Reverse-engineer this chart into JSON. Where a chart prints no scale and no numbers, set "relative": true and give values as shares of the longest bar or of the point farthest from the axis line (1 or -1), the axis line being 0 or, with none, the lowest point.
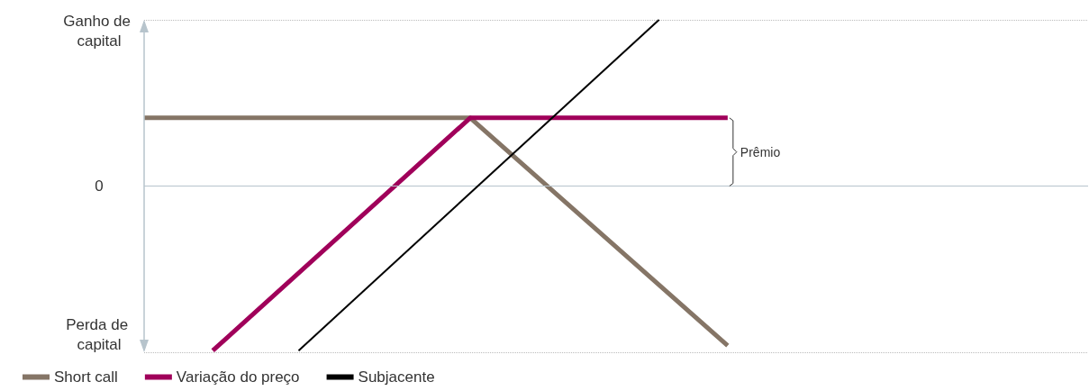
{
  "chart_data": {
    "type": "line",
    "relative": true,
    "categories": [
      null,
      null,
      null,
      null,
      null,
      null,
      null,
      null,
      null,
      null,
      null,
      null,
      null,
      null,
      null,
      null,
      null,
      null,
      null,
      null,
      null,
      null,
      null,
      null,
      null,
      null,
      null,
      null,
      null,
      null,
      null,
      null,
      null,
      null,
      null,
      null,
      null,
      null,
      null,
      null,
      null,
      null,
      null,
      null,
      null,
      null,
      null,
      null,
      null,
      null,
      null,
      null,
      null,
      null,
      null,
      null
    ],
    "series": [
      {
        "name": "Short call",
        "color": "#857566",
        "values": [
          0.41,
          null,
          null,
          null,
          null,
          null,
          null,
          null,
          null,
          null,
          null,
          null,
          null,
          null,
          null,
          null,
          null,
          null,
          null,
          0.41,
          null,
          null,
          null,
          null,
          null,
          null,
          null,
          null,
          null,
          null,
          null,
          null,
          null,
          null,
          -0.96,
          null,
          null,
          null,
          null,
          null,
          null,
          null,
          null,
          null,
          null,
          null,
          null,
          null,
          null,
          null,
          null,
          null,
          null,
          null,
          null,
          null
        ]
      },
      {
        "name": "Variação do preço",
        "color": "#a0005a",
        "values": [
          null,
          null,
          null,
          null,
          -0.99,
          null,
          null,
          null,
          null,
          null,
          null,
          null,
          null,
          null,
          null,
          null,
          null,
          null,
          null,
          0.41,
          null,
          null,
          null,
          null,
          null,
          null,
          null,
          null,
          null,
          null,
          null,
          null,
          null,
          null,
          0.41,
          null,
          null,
          null,
          null,
          null,
          null,
          null,
          null,
          null,
          null,
          null,
          null,
          null,
          null,
          null,
          null,
          null,
          null,
          null,
          null,
          null
        ]
      },
      {
        "name": "Subjacente",
        "color": "#000000",
        "values": [
          null,
          null,
          null,
          null,
          null,
          null,
          null,
          null,
          null,
          -0.99,
          null,
          null,
          null,
          null,
          null,
          null,
          null,
          null,
          null,
          null,
          null,
          null,
          null,
          null,
          null,
          null,
          null,
          null,
          null,
          null,
          1,
          null,
          null,
          null,
          null,
          null,
          null,
          null,
          null,
          null,
          null,
          null,
          null,
          null,
          null,
          null,
          null,
          null,
          null,
          null,
          null,
          null,
          null,
          null,
          null,
          null
        ]
      }
    ],
    "ref_lines": [
      {
        "axis": "y",
        "value": 1,
        "label": "Ganho de capital",
        "line_style": "dotted",
        "color": "#bbbbbb"
      },
      {
        "axis": "y",
        "value": 0,
        "label": "0",
        "line_style": "solid",
        "color": "#b7c4cc"
      },
      {
        "axis": "y",
        "value": -1,
        "label": "Perda de capital",
        "line_style": "dotted",
        "color": "#bbbbbb"
      }
    ],
    "annotations": [
      "Prêmio"
    ],
    "legend": "bottom left",
    "grid": false,
    "marker": "none",
    "line_style": "solid"
  }
}
